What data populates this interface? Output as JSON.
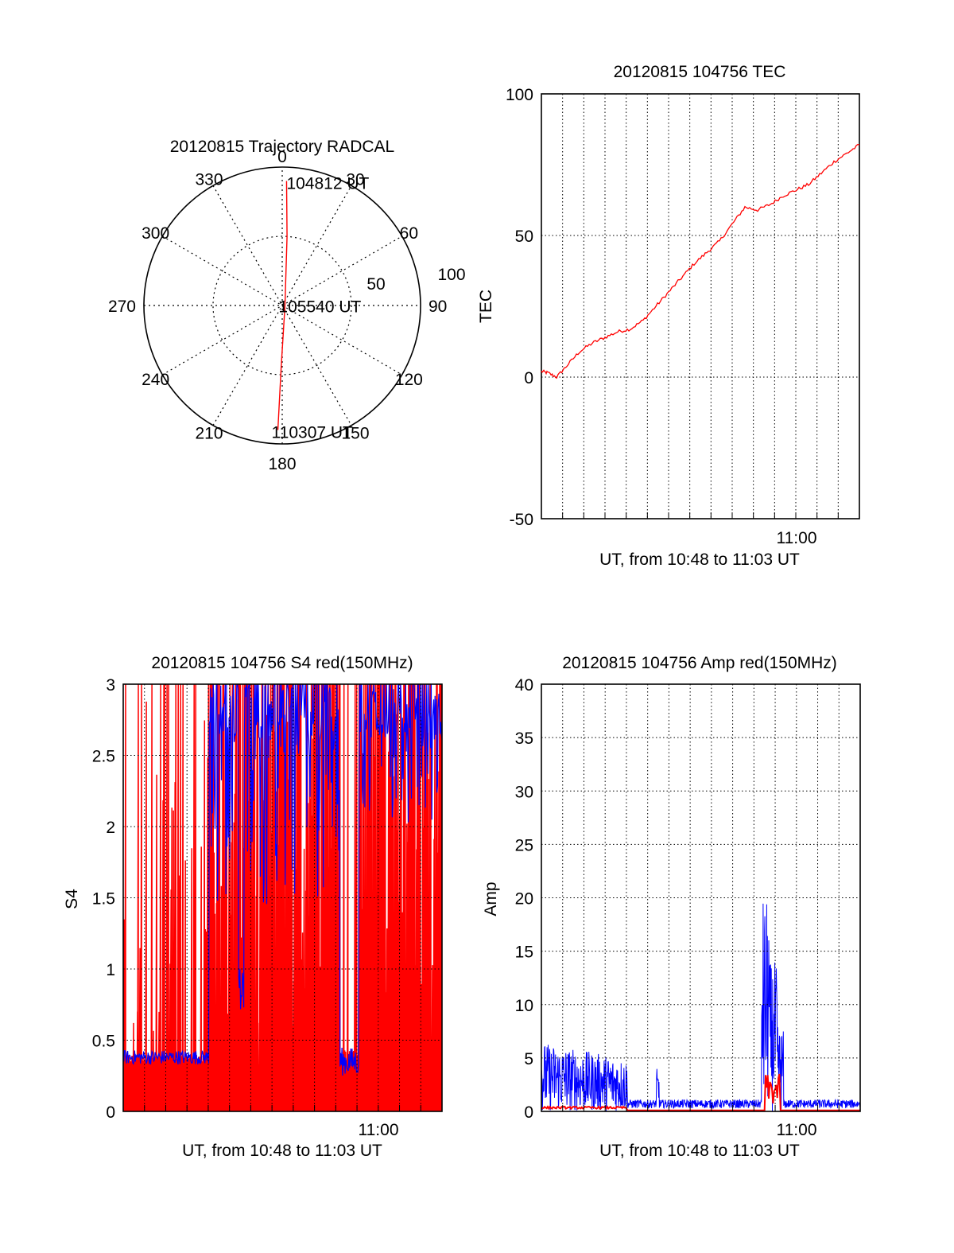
{
  "chart_data": [
    {
      "id": "polar",
      "type": "polar",
      "title": "20120815 Trajectory RADCAL",
      "angle_ticks": [
        "0",
        "30",
        "60",
        "90",
        "120",
        "150",
        "180",
        "210",
        "240",
        "270",
        "300",
        "330"
      ],
      "radial_ticks": [
        "50",
        "100"
      ],
      "radial_max": 100,
      "trajectory": [
        {
          "az": 2,
          "zen": 90,
          "label": "104812 UT"
        },
        {
          "az": 4,
          "zen": 50,
          "label": ""
        },
        {
          "az": 100,
          "zen": 2,
          "label": "105540 UT"
        },
        {
          "az": 181,
          "zen": 45,
          "label": ""
        },
        {
          "az": 182,
          "zen": 90,
          "label": "110307 UT"
        }
      ],
      "line_color": "#ff0000"
    },
    {
      "id": "tec",
      "type": "line",
      "title": "20120815 104756 TEC",
      "ylabel": "TEC",
      "xlabel": "UT, from 10:48 to 11:03 UT",
      "xlim": [
        10.8,
        11.05
      ],
      "ylim": [
        -50,
        100
      ],
      "y_ticks": [
        "100",
        "50",
        "0",
        "-50"
      ],
      "x_tick_label": "11:00",
      "grid": true,
      "series": [
        {
          "color": "#ff0000",
          "x": [
            10.8,
            10.805,
            10.812,
            10.82,
            10.83,
            10.84,
            10.85,
            10.86,
            10.87,
            10.88,
            10.89,
            10.9,
            10.91,
            10.92,
            10.93,
            10.94,
            10.95,
            10.96,
            10.97,
            10.98,
            10.99,
            11.0,
            11.01,
            11.02,
            11.03,
            11.04,
            11.05
          ],
          "y": [
            2,
            1.5,
            0,
            4,
            9,
            12,
            14,
            16,
            17,
            20,
            25,
            30,
            35,
            40,
            44,
            48,
            54,
            60,
            59,
            61,
            64,
            66,
            68,
            72,
            76,
            79,
            82
          ]
        }
      ]
    },
    {
      "id": "s4",
      "type": "line",
      "title": "20120815 104756 S4 red(150MHz)",
      "ylabel": "S4",
      "xlabel": "UT, from 10:48 to 11:03 UT",
      "xlim": [
        10.8,
        11.05
      ],
      "ylim": [
        0,
        3
      ],
      "y_ticks": [
        "3",
        "2.5",
        "2",
        "1.5",
        "1",
        "0.5",
        "0"
      ],
      "x_tick_label": "11:00",
      "grid": true,
      "series": [
        {
          "color": "#ff0000",
          "name": ""
        },
        {
          "color": "#0000ff",
          "name": ""
        }
      ]
    },
    {
      "id": "amp",
      "type": "line",
      "title": "20120815 104756 Amp red(150MHz)",
      "ylabel": "Amp",
      "xlabel": "UT, from 10:48 to 11:03 UT",
      "xlim": [
        10.8,
        11.05
      ],
      "ylim": [
        0,
        40
      ],
      "y_ticks": [
        "40",
        "35",
        "30",
        "25",
        "20",
        "15",
        "10",
        "5",
        "0"
      ],
      "x_tick_label": "11:00",
      "grid": true,
      "series": [
        {
          "color": "#0000ff",
          "name": ""
        },
        {
          "color": "#ff0000",
          "name": ""
        }
      ]
    }
  ]
}
